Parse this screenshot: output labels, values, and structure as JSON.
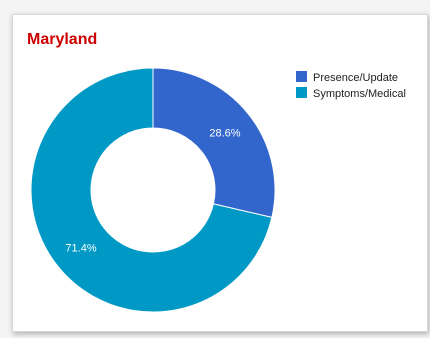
{
  "chart_data": {
    "type": "pie",
    "title": "Maryland",
    "donut": true,
    "legend_position": "right",
    "slices": [
      {
        "label": "Presence/Update",
        "value": 28.6,
        "display": "28.6%",
        "color": "#3366cc"
      },
      {
        "label": "Symptoms/Medical",
        "value": 71.4,
        "display": "71.4%",
        "color": "#0099c6"
      }
    ]
  }
}
